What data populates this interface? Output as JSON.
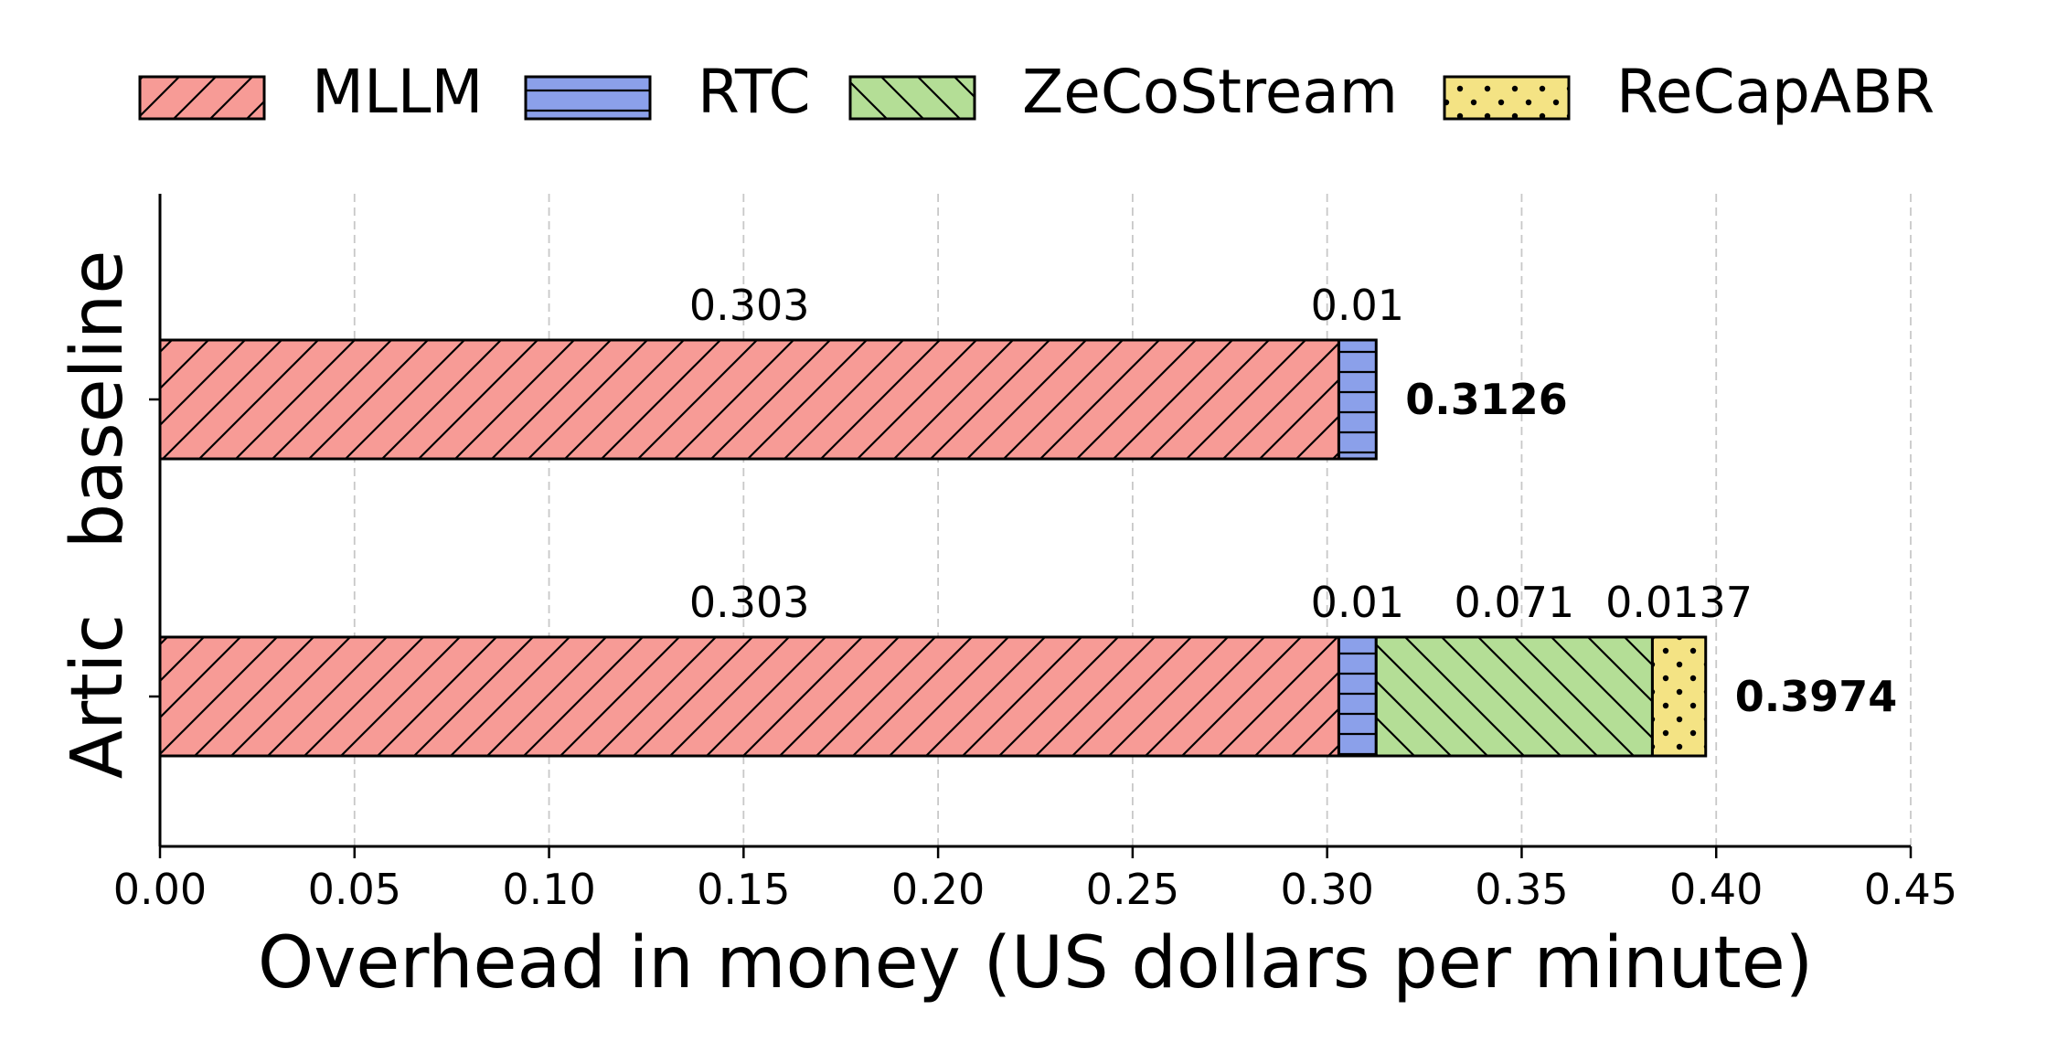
{
  "chart_data": {
    "type": "bar",
    "orientation": "horizontal",
    "stacked": true,
    "xlabel": "Overhead in money (US dollars per minute)",
    "ylabel": "",
    "xlim": [
      0,
      0.45
    ],
    "xticks": [
      0.0,
      0.05,
      0.1,
      0.15,
      0.2,
      0.25,
      0.3,
      0.35,
      0.4,
      0.45
    ],
    "xtick_labels": [
      "0.00",
      "0.05",
      "0.10",
      "0.15",
      "0.20",
      "0.25",
      "0.30",
      "0.35",
      "0.40",
      "0.45"
    ],
    "grid": "x-dashed",
    "legend_position": "top",
    "categories": [
      "baseline",
      "Artic"
    ],
    "series": [
      {
        "name": "MLLM",
        "values": [
          0.303,
          0.303
        ],
        "labels": [
          "0.303",
          "0.303"
        ],
        "color": "#f79b96",
        "hatch": "diag-forward"
      },
      {
        "name": "RTC",
        "values": [
          0.0096,
          0.0096
        ],
        "labels": [
          "0.01",
          "0.01"
        ],
        "color": "#8ba0ea",
        "hatch": "horizontal"
      },
      {
        "name": "ZeCoStream",
        "values": [
          0,
          0.071
        ],
        "labels": [
          "",
          "0.071"
        ],
        "color": "#b4de96",
        "hatch": "diag-back"
      },
      {
        "name": "ReCapABR",
        "values": [
          0,
          0.0137
        ],
        "labels": [
          "",
          "0.0137"
        ],
        "color": "#f4e384",
        "hatch": "dots"
      }
    ],
    "totals": [
      "0.3126",
      "0.3974"
    ]
  }
}
